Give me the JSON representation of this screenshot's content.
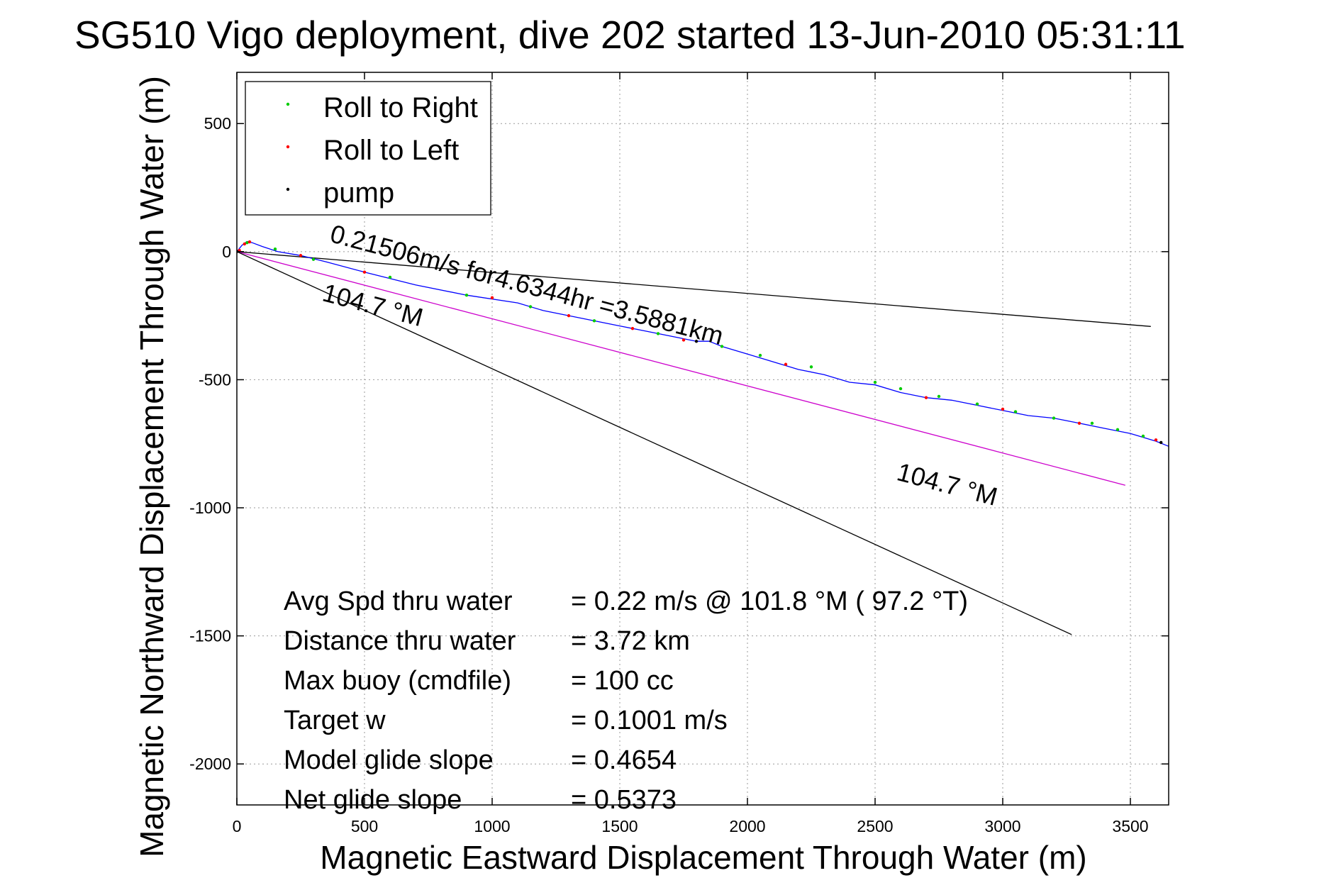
{
  "chart_data": {
    "type": "line",
    "title": "SG510 Vigo deployment, dive 202 started 13-Jun-2010 05:31:11",
    "xlabel": "Magnetic Eastward Displacement Through Water (m)",
    "ylabel": "Magnetic Northward Displacement Through Water (m)",
    "xlim": [
      0,
      3650
    ],
    "ylim": [
      -2160,
      700
    ],
    "xticks": [
      0,
      500,
      1000,
      1500,
      2000,
      2500,
      3000,
      3500
    ],
    "yticks": [
      500,
      0,
      -500,
      -1000,
      -1500,
      -2000
    ],
    "grid": true,
    "legend": {
      "placement": "top-left",
      "entries": [
        {
          "label": "Roll to Right",
          "color": "#00cc00"
        },
        {
          "label": "Roll to Left",
          "color": "#ff0000"
        },
        {
          "label": "pump",
          "color": "#000000"
        }
      ]
    },
    "track": {
      "color": "#0000ff",
      "x": [
        0,
        20,
        40,
        60,
        100,
        160,
        250,
        350,
        500,
        700,
        900,
        1100,
        1200,
        1300,
        1400,
        1500,
        1600,
        1700,
        1800,
        1850,
        1900,
        2000,
        2100,
        2200,
        2300,
        2400,
        2500,
        2600,
        2700,
        2800,
        2900,
        3000,
        3100,
        3200,
        3300,
        3400,
        3500,
        3600,
        3650
      ],
      "y": [
        0,
        25,
        40,
        35,
        20,
        0,
        -15,
        -40,
        -80,
        -130,
        -170,
        -200,
        -230,
        -250,
        -270,
        -290,
        -310,
        -330,
        -350,
        -350,
        -370,
        -400,
        -430,
        -460,
        -480,
        -510,
        -520,
        -550,
        -570,
        -580,
        -600,
        -620,
        -640,
        -650,
        -670,
        -690,
        -710,
        -740,
        -760
      ]
    },
    "roll_right_x": [
      40,
      150,
      300,
      600,
      900,
      1150,
      1400,
      1650,
      1900,
      2050,
      2250,
      2500,
      2600,
      2750,
      2900,
      3050,
      3200,
      3350,
      3450,
      3550
    ],
    "roll_right_y": [
      35,
      10,
      -30,
      -100,
      -170,
      -215,
      -270,
      -320,
      -370,
      -405,
      -450,
      -510,
      -535,
      -565,
      -595,
      -625,
      -650,
      -670,
      -695,
      -720
    ],
    "roll_left_x": [
      10,
      30,
      50,
      250,
      500,
      1000,
      1300,
      1550,
      1750,
      2150,
      2700,
      3000,
      3300,
      3600
    ],
    "roll_left_y": [
      5,
      30,
      38,
      -15,
      -80,
      -180,
      -250,
      -300,
      -345,
      -440,
      -570,
      -615,
      -670,
      -735
    ],
    "pump_x": [
      0,
      1800,
      3620
    ],
    "pump_y": [
      0,
      -350,
      -745
    ],
    "heading_lines": [
      {
        "color": "#000000",
        "x": [
          0,
          3580
        ],
        "y": [
          0,
          -292
        ]
      },
      {
        "color": "#cc00cc",
        "x": [
          0,
          3480
        ],
        "y": [
          0,
          -912
        ]
      },
      {
        "color": "#000000",
        "x": [
          0,
          3270
        ],
        "y": [
          0,
          -1495
        ]
      }
    ],
    "annotations": [
      {
        "text": "0.21506m/s for4.6344hr =3.5881km",
        "x": 360,
        "y": 40,
        "rotate": 14.8
      },
      {
        "text": "104.7 °M",
        "x": 330,
        "y": -190,
        "rotate": 14.8
      },
      {
        "text": "104.7 °M",
        "x": 2580,
        "y": -890,
        "rotate": 14.8
      }
    ],
    "stats": [
      {
        "label": "Avg Spd thru water",
        "value": "=  0.22 m/s @ 101.8 °M ( 97.2 °T)"
      },
      {
        "label": "Distance thru water",
        "value": "=  3.72 km"
      },
      {
        "label": "Max buoy (cmdfile)",
        "value": "= 100 cc"
      },
      {
        "label": "Target w",
        "value": "= 0.1001 m/s"
      },
      {
        "label": "Model glide slope",
        "value": "= 0.4654"
      },
      {
        "label": "Net glide slope",
        "value": "= 0.5373"
      }
    ]
  }
}
